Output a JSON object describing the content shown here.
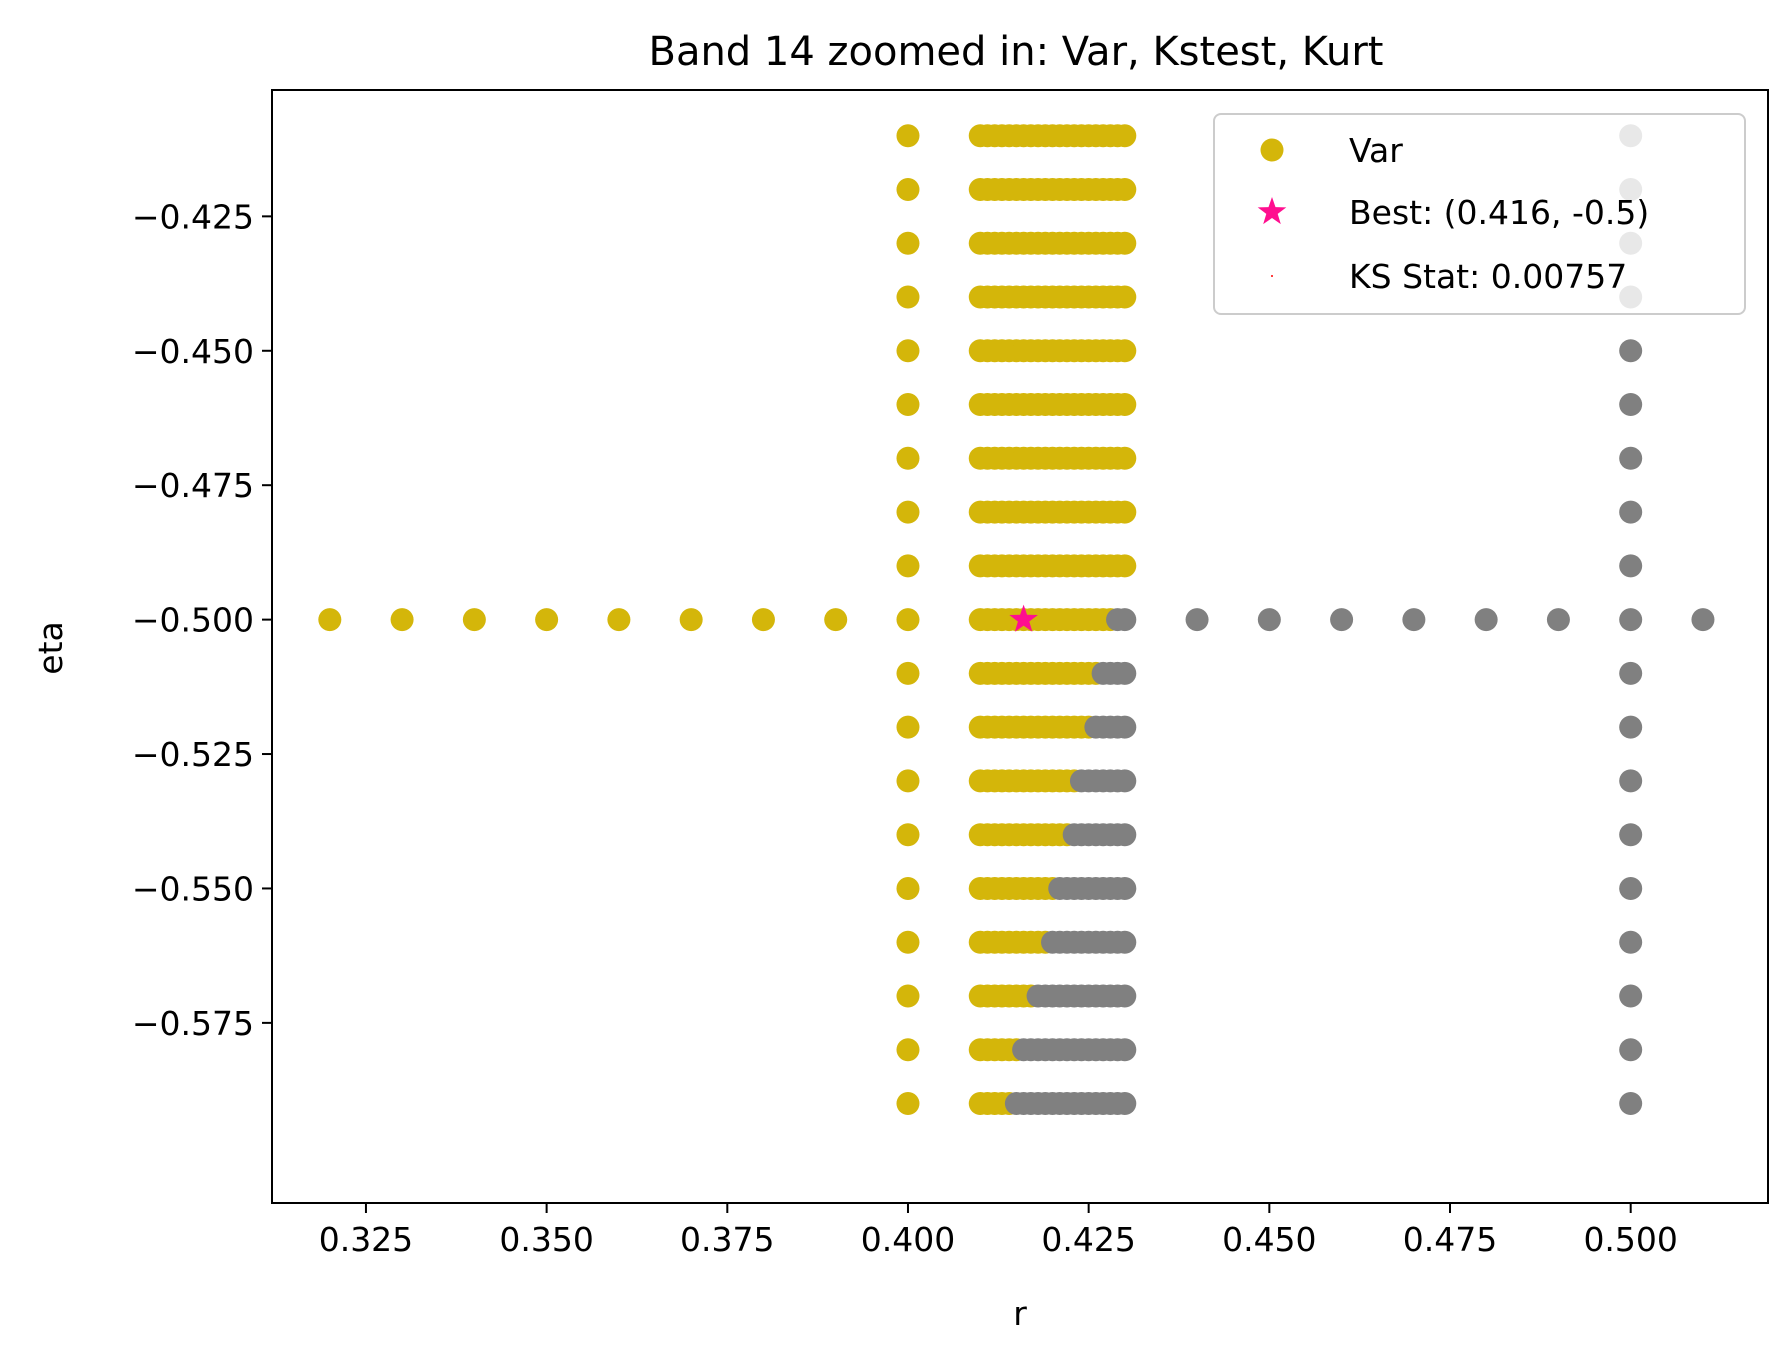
{
  "chart_data": {
    "type": "scatter",
    "title": "Band 14 zoomed in: Var, Kstest, Kurt",
    "xlabel": "r",
    "ylabel": "eta",
    "xlim": [
      0.312,
      0.519
    ],
    "ylim": [
      -0.6085,
      -0.4015
    ],
    "x_ticks": [
      0.325,
      0.35,
      0.375,
      0.4,
      0.425,
      0.45,
      0.475,
      0.5
    ],
    "x_tick_labels": [
      "0.325",
      "0.350",
      "0.375",
      "0.400",
      "0.425",
      "0.450",
      "0.475",
      "0.500"
    ],
    "y_ticks": [
      -0.425,
      -0.45,
      -0.475,
      -0.5,
      -0.525,
      -0.55,
      -0.575
    ],
    "y_tick_labels": [
      "−0.425",
      "−0.450",
      "−0.475",
      "−0.500",
      "−0.525",
      "−0.550",
      "−0.575"
    ],
    "grid": false,
    "legend_position": "top-right",
    "legend": [
      {
        "label": "Var",
        "marker": "circle",
        "color": "#d4b60a"
      },
      {
        "label": "Best: (0.416, -0.5)",
        "marker": "star",
        "color": "#ff0f8f"
      },
      {
        "label": "KS Stat: 0.00757",
        "marker": "point",
        "color": "#ff0000"
      }
    ],
    "colors": {
      "var": "#d4b60a",
      "grey": "#808080",
      "best": "#ff0f8f"
    },
    "r_row_start": 0.41,
    "r_row_end": 0.43,
    "r_row_step": 0.001,
    "eta_rows": [
      -0.41,
      -0.42,
      -0.43,
      -0.44,
      -0.45,
      -0.46,
      -0.47,
      -0.48,
      -0.49,
      -0.5,
      -0.51,
      -0.52,
      -0.53,
      -0.54,
      -0.55,
      -0.56,
      -0.57,
      -0.58,
      -0.59
    ],
    "yellow_until_r": [
      0.43,
      0.43,
      0.43,
      0.43,
      0.43,
      0.43,
      0.43,
      0.43,
      0.43,
      0.428,
      0.426,
      0.425,
      0.423,
      0.422,
      0.42,
      0.419,
      0.417,
      0.415,
      0.414
    ],
    "series": [
      {
        "name": "Var",
        "color": "#d4b60a",
        "points": [
          [
            0.32,
            -0.5
          ],
          [
            0.33,
            -0.5
          ],
          [
            0.34,
            -0.5
          ],
          [
            0.35,
            -0.5
          ],
          [
            0.36,
            -0.5
          ],
          [
            0.37,
            -0.5
          ],
          [
            0.38,
            -0.5
          ],
          [
            0.39,
            -0.5
          ],
          [
            0.4,
            -0.41
          ],
          [
            0.4,
            -0.42
          ],
          [
            0.4,
            -0.43
          ],
          [
            0.4,
            -0.44
          ],
          [
            0.4,
            -0.45
          ],
          [
            0.4,
            -0.46
          ],
          [
            0.4,
            -0.47
          ],
          [
            0.4,
            -0.48
          ],
          [
            0.4,
            -0.49
          ],
          [
            0.4,
            -0.5
          ],
          [
            0.4,
            -0.51
          ],
          [
            0.4,
            -0.52
          ],
          [
            0.4,
            -0.53
          ],
          [
            0.4,
            -0.54
          ],
          [
            0.4,
            -0.55
          ],
          [
            0.4,
            -0.56
          ],
          [
            0.4,
            -0.57
          ],
          [
            0.4,
            -0.58
          ],
          [
            0.4,
            -0.59
          ]
        ]
      },
      {
        "color": "#808080",
        "points": [
          [
            0.44,
            -0.5
          ],
          [
            0.45,
            -0.5
          ],
          [
            0.46,
            -0.5
          ],
          [
            0.47,
            -0.5
          ],
          [
            0.48,
            -0.5
          ],
          [
            0.49,
            -0.5
          ],
          [
            0.5,
            -0.5
          ],
          [
            0.51,
            -0.5
          ],
          [
            0.5,
            -0.41
          ],
          [
            0.5,
            -0.42
          ],
          [
            0.5,
            -0.43
          ],
          [
            0.5,
            -0.44
          ],
          [
            0.5,
            -0.45
          ],
          [
            0.5,
            -0.46
          ],
          [
            0.5,
            -0.47
          ],
          [
            0.5,
            -0.48
          ],
          [
            0.5,
            -0.49
          ],
          [
            0.5,
            -0.51
          ],
          [
            0.5,
            -0.52
          ],
          [
            0.5,
            -0.53
          ],
          [
            0.5,
            -0.54
          ],
          [
            0.5,
            -0.55
          ],
          [
            0.5,
            -0.56
          ],
          [
            0.5,
            -0.57
          ],
          [
            0.5,
            -0.58
          ],
          [
            0.5,
            -0.59
          ]
        ]
      }
    ],
    "best_point": {
      "r": 0.416,
      "eta": -0.5
    }
  }
}
